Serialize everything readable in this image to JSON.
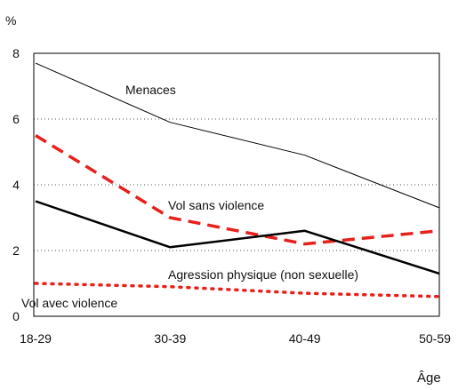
{
  "chart_data": {
    "type": "line",
    "y_unit": "%",
    "xlabel": "Âge",
    "categories": [
      "18-29",
      "30-39",
      "40-49",
      "50-59"
    ],
    "ylim": [
      0,
      8
    ],
    "yticks": [
      "0",
      "2",
      "4",
      "6",
      "8"
    ],
    "grid": "horizontal dotted",
    "series": [
      {
        "name": "Menaces",
        "values": [
          7.7,
          5.9,
          4.9,
          3.3
        ],
        "color": "#000000",
        "style": "thin-solid"
      },
      {
        "name": "Vol sans violence",
        "values": [
          5.5,
          3.0,
          2.2,
          2.6
        ],
        "color": "#e8201c",
        "style": "dashed"
      },
      {
        "name": "Agression physique (non sexuelle)",
        "values": [
          3.5,
          2.1,
          2.6,
          1.3
        ],
        "color": "#000000",
        "style": "thick-solid"
      },
      {
        "name": "Vol avec violence",
        "values": [
          1.0,
          0.9,
          0.7,
          0.6
        ],
        "color": "#e8201c",
        "style": "dotted"
      }
    ]
  }
}
